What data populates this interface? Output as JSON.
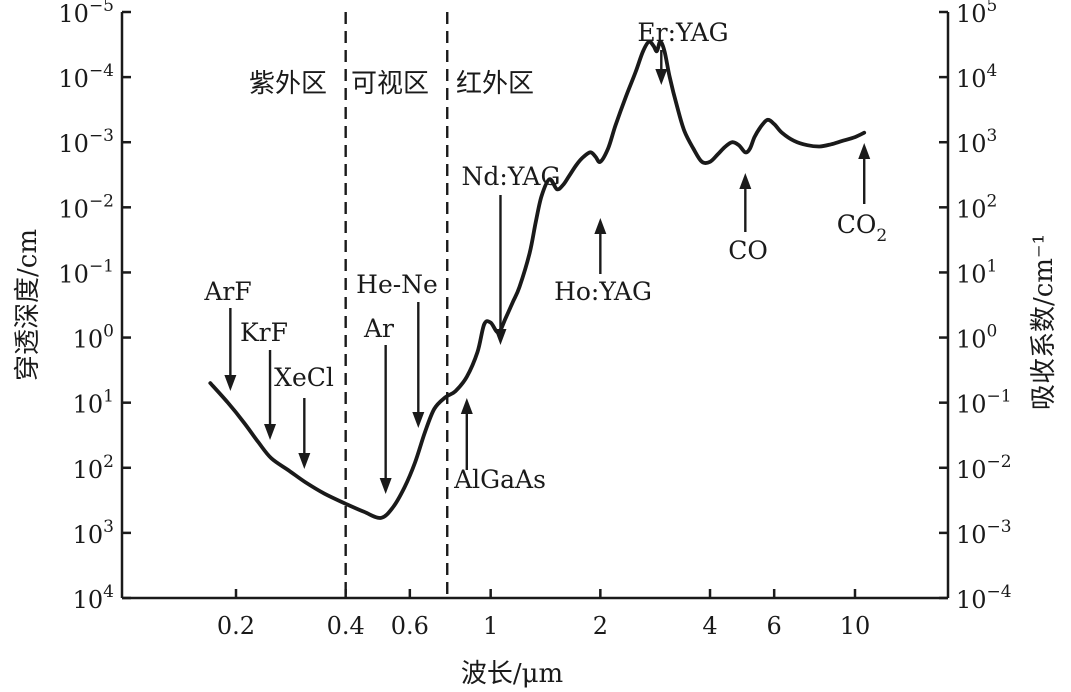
{
  "chart_data": {
    "type": "line",
    "title": "",
    "xlabel": "波长/μm",
    "ylabel_left": "穿透深度/cm",
    "ylabel_right": "吸收系数/cm⁻¹",
    "x_scale": "log",
    "xlim": [
      0.13,
      17
    ],
    "x_ticks": [
      {
        "value": 0.2,
        "label": "0.2"
      },
      {
        "value": 0.4,
        "label": "0.4"
      },
      {
        "value": 0.6,
        "label": "0.6"
      },
      {
        "value": 1,
        "label": "1"
      },
      {
        "value": 2,
        "label": "2"
      },
      {
        "value": 4,
        "label": "4"
      },
      {
        "value": 6,
        "label": "6"
      },
      {
        "value": 10,
        "label": "10"
      }
    ],
    "y_left_ticks": [
      {
        "base": "10",
        "exp": "−5"
      },
      {
        "base": "10",
        "exp": "−4"
      },
      {
        "base": "10",
        "exp": "−3"
      },
      {
        "base": "10",
        "exp": "−2"
      },
      {
        "base": "10",
        "exp": "−1"
      },
      {
        "base": "10",
        "exp": "0"
      },
      {
        "base": "10",
        "exp": "1"
      },
      {
        "base": "10",
        "exp": "2"
      },
      {
        "base": "10",
        "exp": "3"
      },
      {
        "base": "10",
        "exp": "4"
      }
    ],
    "y_right_ticks": [
      {
        "base": "10",
        "exp": "5"
      },
      {
        "base": "10",
        "exp": "4"
      },
      {
        "base": "10",
        "exp": "3"
      },
      {
        "base": "10",
        "exp": "2"
      },
      {
        "base": "10",
        "exp": "1"
      },
      {
        "base": "10",
        "exp": "0"
      },
      {
        "base": "10",
        "exp": "−1"
      },
      {
        "base": "10",
        "exp": "−2"
      },
      {
        "base": "10",
        "exp": "−3"
      },
      {
        "base": "10",
        "exp": "−4"
      }
    ],
    "y_right_scale": "log",
    "y_right_lim_absorption_cm-1": [
      0.0001,
      100000
    ],
    "series": [
      {
        "x_wavelength_um": [
          0.17,
          0.19,
          0.21,
          0.23,
          0.25,
          0.28,
          0.31,
          0.35,
          0.4,
          0.45,
          0.5,
          0.54,
          0.58,
          0.62,
          0.66,
          0.7,
          0.75,
          0.8,
          0.86,
          0.92,
          0.96,
          1.0,
          1.05,
          1.1,
          1.15,
          1.2,
          1.28,
          1.33,
          1.38,
          1.45,
          1.52,
          1.58,
          1.64,
          1.72,
          1.8,
          1.88,
          1.94,
          2.0,
          2.1,
          2.2,
          2.35,
          2.5,
          2.62,
          2.72,
          2.8,
          2.86,
          2.92,
          3.0,
          3.1,
          3.25,
          3.4,
          3.6,
          3.8,
          4.0,
          4.2,
          4.4,
          4.6,
          4.8,
          5.0,
          5.15,
          5.3,
          5.5,
          5.75,
          6.0,
          6.3,
          6.8,
          7.4,
          8.0,
          8.6,
          9.2,
          10.0,
          10.6
        ],
        "y_absorption_cm-1": [
          0.2,
          0.1,
          0.05,
          0.025,
          0.014,
          0.009,
          0.006,
          0.004,
          0.0028,
          0.0021,
          0.0017,
          0.0025,
          0.005,
          0.012,
          0.035,
          0.08,
          0.12,
          0.15,
          0.25,
          0.6,
          1.6,
          1.7,
          1.2,
          2.0,
          3.5,
          6.0,
          20,
          60,
          150,
          270,
          190,
          220,
          300,
          450,
          600,
          700,
          600,
          500,
          800,
          1800,
          5000,
          12000,
          25000,
          35000,
          30000,
          25000,
          35000,
          25000,
          10000,
          3500,
          1500,
          800,
          500,
          500,
          650,
          850,
          1000,
          900,
          700,
          800,
          1200,
          1700,
          2200,
          1900,
          1400,
          1050,
          900,
          860,
          930,
          1040,
          1200,
          1400
        ]
      }
    ],
    "annotations": [
      {
        "text": "ArF",
        "x": 0.193
      },
      {
        "text": "KrF",
        "x": 0.248
      },
      {
        "text": "XeCl",
        "x": 0.308
      },
      {
        "text": "Ar",
        "x": 0.515
      },
      {
        "text": "He-Ne",
        "x": 0.633
      },
      {
        "text": "AlGaAs",
        "x": 0.86
      },
      {
        "text": "Nd:YAG",
        "x": 1.064
      },
      {
        "text": "Ho:YAG",
        "x": 2.0
      },
      {
        "text": "Er:YAG",
        "x": 2.94
      },
      {
        "text": "CO",
        "x": 5.0
      },
      {
        "text": "CO",
        "sub": "2",
        "x": 10.6
      }
    ],
    "regions": [
      {
        "label": "紫外区"
      },
      {
        "label": "可视区"
      },
      {
        "label": "红外区"
      }
    ],
    "region_boundaries_um": [
      0.4,
      0.76
    ],
    "grid": false,
    "legend": "none"
  }
}
